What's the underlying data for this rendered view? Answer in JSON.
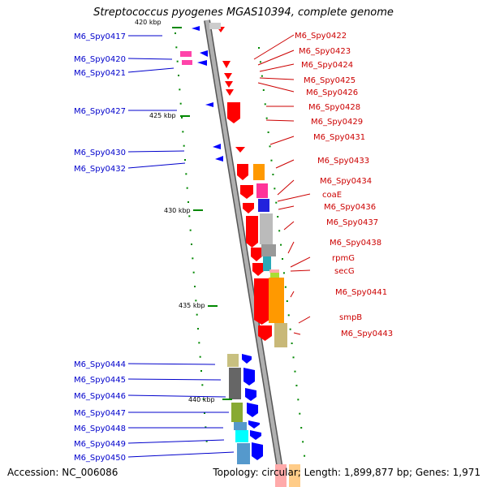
{
  "title": "Streptococcus pyogenes MGAS10394, complete genome",
  "accession": "Accession: NC_006086",
  "topology": "Topology: circular; Length: 1,899,877 bp; Genes: 1,971",
  "colors": {
    "backbone": "#a8a8a8",
    "left_label": "#0000cc",
    "right_label": "#cc0000",
    "tick": "#008800",
    "forward_strand": "#0000ff",
    "reverse_strand": "#ff0000"
  },
  "scale": {
    "unit": "kbp",
    "ticks": [
      {
        "label": "420 kbp"
      },
      {
        "label": "425 kbp"
      },
      {
        "label": "430 kbp"
      },
      {
        "label": "435 kbp"
      },
      {
        "label": "440 kbp"
      }
    ]
  },
  "left_labels": [
    "M6_Spy0417",
    "M6_Spy0420",
    "M6_Spy0421",
    "M6_Spy0427",
    "M6_Spy0430",
    "M6_Spy0432",
    "M6_Spy0444",
    "M6_Spy0445",
    "M6_Spy0446",
    "M6_Spy0447",
    "M6_Spy0448",
    "M6_Spy0449",
    "M6_Spy0450"
  ],
  "right_labels": [
    "M6_Spy0422",
    "M6_Spy0423",
    "M6_Spy0424",
    "M6_Spy0425",
    "M6_Spy0426",
    "M6_Spy0428",
    "M6_Spy0429",
    "M6_Spy0431",
    "M6_Spy0433",
    "M6_Spy0434",
    "coaE",
    "M6_Spy0436",
    "M6_Spy0437",
    "M6_Spy0438",
    "rpmG",
    "secG",
    "M6_Spy0441",
    "smpB",
    "M6_Spy0443"
  ]
}
